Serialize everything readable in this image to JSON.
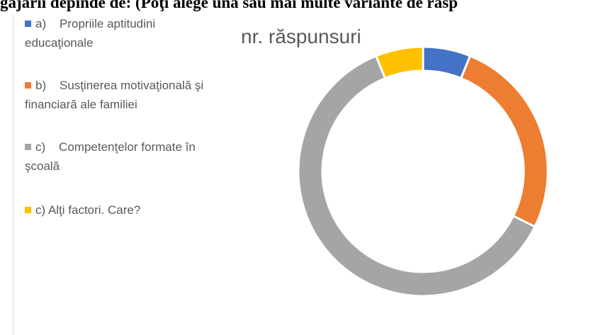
{
  "header": {
    "text": "gajării depinde de: (Poţi alege una sau mai multe variante de răsp"
  },
  "chart_data": {
    "type": "donut",
    "title": "nr. răspunsuri",
    "categories": [
      "a)    Propriile aptitudini educaţionale",
      "b)    Susţinerea motivaţională şi financiară ale familiei",
      "c)    Competenţelor formate în şcoală",
      "c) Alţi factori. Care?"
    ],
    "values": [
      4,
      17,
      40,
      4
    ],
    "colors": [
      "#4472c4",
      "#ed7d31",
      "#a5a5a5",
      "#ffc000"
    ],
    "legend": "left"
  }
}
